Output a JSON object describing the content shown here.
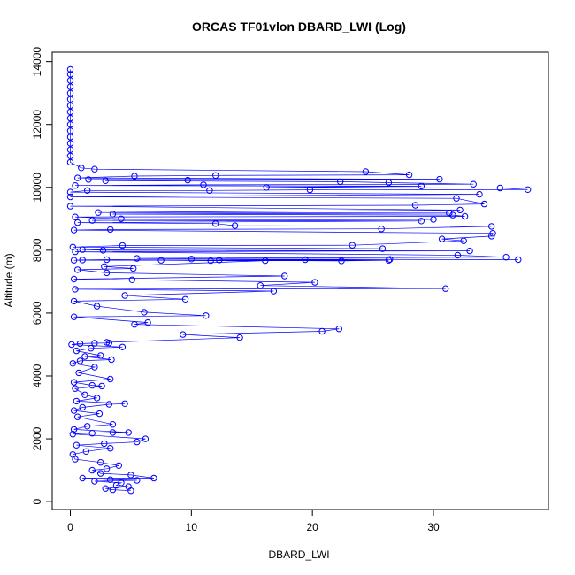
{
  "chart_data": {
    "type": "scatter",
    "title": "ORCAS TF01vlon DBARD_LWI (Log)",
    "xlabel": "DBARD_LWI",
    "ylabel": "Altitude (m)",
    "xlim": [
      -1.5,
      39.5
    ],
    "ylim": [
      -250,
      14300
    ],
    "x_ticks": [
      0,
      10,
      20,
      30
    ],
    "y_ticks": [
      0,
      2000,
      4000,
      6000,
      8000,
      10000,
      12000,
      14000
    ],
    "grid": false,
    "legend": "none",
    "series": [
      {
        "color": "#0000ff",
        "marker": "open-circle",
        "line": true,
        "points": [
          [
            0,
            13750
          ],
          [
            0,
            13600
          ],
          [
            0,
            13400
          ],
          [
            0,
            13200
          ],
          [
            0,
            13000
          ],
          [
            0,
            12800
          ],
          [
            0,
            12600
          ],
          [
            0,
            12400
          ],
          [
            0,
            12200
          ],
          [
            0,
            12000
          ],
          [
            0,
            11800
          ],
          [
            0,
            11600
          ],
          [
            0,
            11400
          ],
          [
            0,
            11200
          ],
          [
            0,
            11000
          ],
          [
            0,
            10800
          ],
          [
            0.9,
            10620
          ],
          [
            2.0,
            10580
          ],
          [
            24.4,
            10500
          ],
          [
            28.0,
            10400
          ],
          [
            12.0,
            10380
          ],
          [
            5.3,
            10360
          ],
          [
            0.6,
            10300
          ],
          [
            30.5,
            10260
          ],
          [
            1.5,
            10250
          ],
          [
            9.7,
            10230
          ],
          [
            2.9,
            10210
          ],
          [
            22.3,
            10180
          ],
          [
            26.3,
            10150
          ],
          [
            33.3,
            10100
          ],
          [
            11.0,
            10080
          ],
          [
            0.4,
            10060
          ],
          [
            29.0,
            10040
          ],
          [
            16.2,
            10000
          ],
          [
            35.5,
            9980
          ],
          [
            37.8,
            9930
          ],
          [
            19.8,
            9920
          ],
          [
            11.5,
            9900
          ],
          [
            1.4,
            9900
          ],
          [
            0,
            9850
          ],
          [
            33.8,
            9780
          ],
          [
            0,
            9700
          ],
          [
            31.9,
            9650
          ],
          [
            34.2,
            9470
          ],
          [
            28.5,
            9430
          ],
          [
            0,
            9400
          ],
          [
            32.2,
            9280
          ],
          [
            2.3,
            9200
          ],
          [
            31.3,
            9180
          ],
          [
            3.5,
            9150
          ],
          [
            31.6,
            9120
          ],
          [
            32.6,
            9080
          ],
          [
            0.4,
            9060
          ],
          [
            4.2,
            9000
          ],
          [
            30.0,
            8980
          ],
          [
            1.8,
            8950
          ],
          [
            29.0,
            8930
          ],
          [
            0.6,
            8880
          ],
          [
            12.0,
            8850
          ],
          [
            13.6,
            8780
          ],
          [
            34.8,
            8760
          ],
          [
            25.7,
            8680
          ],
          [
            3.3,
            8660
          ],
          [
            0.3,
            8640
          ],
          [
            34.9,
            8540
          ],
          [
            34.8,
            8450
          ],
          [
            30.7,
            8360
          ],
          [
            32.5,
            8300
          ],
          [
            23.3,
            8160
          ],
          [
            4.3,
            8150
          ],
          [
            0.2,
            8100
          ],
          [
            25.8,
            8050
          ],
          [
            1.0,
            8020
          ],
          [
            2.7,
            8000
          ],
          [
            33.0,
            7980
          ],
          [
            0.4,
            7950
          ],
          [
            32.0,
            7840
          ],
          [
            36.0,
            7780
          ],
          [
            5.5,
            7740
          ],
          [
            10.0,
            7720
          ],
          [
            37.0,
            7700
          ],
          [
            26.4,
            7710
          ],
          [
            19.4,
            7700
          ],
          [
            12.3,
            7690
          ],
          [
            26.3,
            7680
          ],
          [
            22.4,
            7660
          ],
          [
            3.0,
            7700
          ],
          [
            1.0,
            7690
          ],
          [
            0.3,
            7680
          ],
          [
            7.5,
            7680
          ],
          [
            11.6,
            7670
          ],
          [
            16.1,
            7670
          ],
          [
            2.8,
            7480
          ],
          [
            5.2,
            7420
          ],
          [
            0.6,
            7380
          ],
          [
            3.0,
            7280
          ],
          [
            17.7,
            7180
          ],
          [
            0.3,
            7080
          ],
          [
            5.1,
            7060
          ],
          [
            20.2,
            6980
          ],
          [
            15.7,
            6880
          ],
          [
            31.0,
            6780
          ],
          [
            0.4,
            6760
          ],
          [
            16.8,
            6700
          ],
          [
            4.5,
            6560
          ],
          [
            9.5,
            6440
          ],
          [
            0.3,
            6380
          ],
          [
            2.2,
            6220
          ],
          [
            6.1,
            6030
          ],
          [
            11.2,
            5920
          ],
          [
            0.3,
            5880
          ],
          [
            6.4,
            5700
          ],
          [
            5.3,
            5640
          ],
          [
            22.2,
            5500
          ],
          [
            20.8,
            5420
          ],
          [
            9.3,
            5320
          ],
          [
            14.0,
            5220
          ],
          [
            3.0,
            5070
          ],
          [
            3.2,
            5050
          ],
          [
            2.0,
            5040
          ],
          [
            0.8,
            5030
          ],
          [
            0.1,
            5000
          ],
          [
            4.3,
            4920
          ],
          [
            1.7,
            4880
          ],
          [
            0.5,
            4800
          ],
          [
            2.5,
            4650
          ],
          [
            1.2,
            4620
          ],
          [
            3.4,
            4520
          ],
          [
            0.8,
            4480
          ],
          [
            0.2,
            4400
          ],
          [
            2.0,
            4280
          ],
          [
            0.7,
            4100
          ],
          [
            3.3,
            3900
          ],
          [
            0.3,
            3800
          ],
          [
            1.8,
            3700
          ],
          [
            2.6,
            3680
          ],
          [
            0.4,
            3600
          ],
          [
            1.2,
            3400
          ],
          [
            2.2,
            3300
          ],
          [
            0.5,
            3200
          ],
          [
            4.5,
            3120
          ],
          [
            3.2,
            3100
          ],
          [
            1.0,
            3000
          ],
          [
            0.3,
            2900
          ],
          [
            2.4,
            2800
          ],
          [
            0.6,
            2700
          ],
          [
            3.5,
            2460
          ],
          [
            1.4,
            2400
          ],
          [
            0.3,
            2300
          ],
          [
            4.8,
            2200
          ],
          [
            3.5,
            2200
          ],
          [
            1.8,
            2180
          ],
          [
            0.2,
            2150
          ],
          [
            6.2,
            2000
          ],
          [
            5.5,
            1900
          ],
          [
            2.8,
            1850
          ],
          [
            0.5,
            1800
          ],
          [
            3.3,
            1700
          ],
          [
            1.3,
            1600
          ],
          [
            0.2,
            1500
          ],
          [
            0.4,
            1350
          ],
          [
            2.5,
            1250
          ],
          [
            4.0,
            1150
          ],
          [
            3.0,
            1050
          ],
          [
            1.8,
            1000
          ],
          [
            2.5,
            900
          ],
          [
            5.0,
            850
          ],
          [
            6.9,
            750
          ],
          [
            1.0,
            750
          ],
          [
            3.3,
            700
          ],
          [
            5.5,
            680
          ],
          [
            2.0,
            650
          ],
          [
            4.2,
            600
          ],
          [
            3.8,
            520
          ],
          [
            4.8,
            480
          ],
          [
            2.9,
            420
          ],
          [
            3.5,
            380
          ],
          [
            5.0,
            350
          ]
        ]
      }
    ]
  }
}
